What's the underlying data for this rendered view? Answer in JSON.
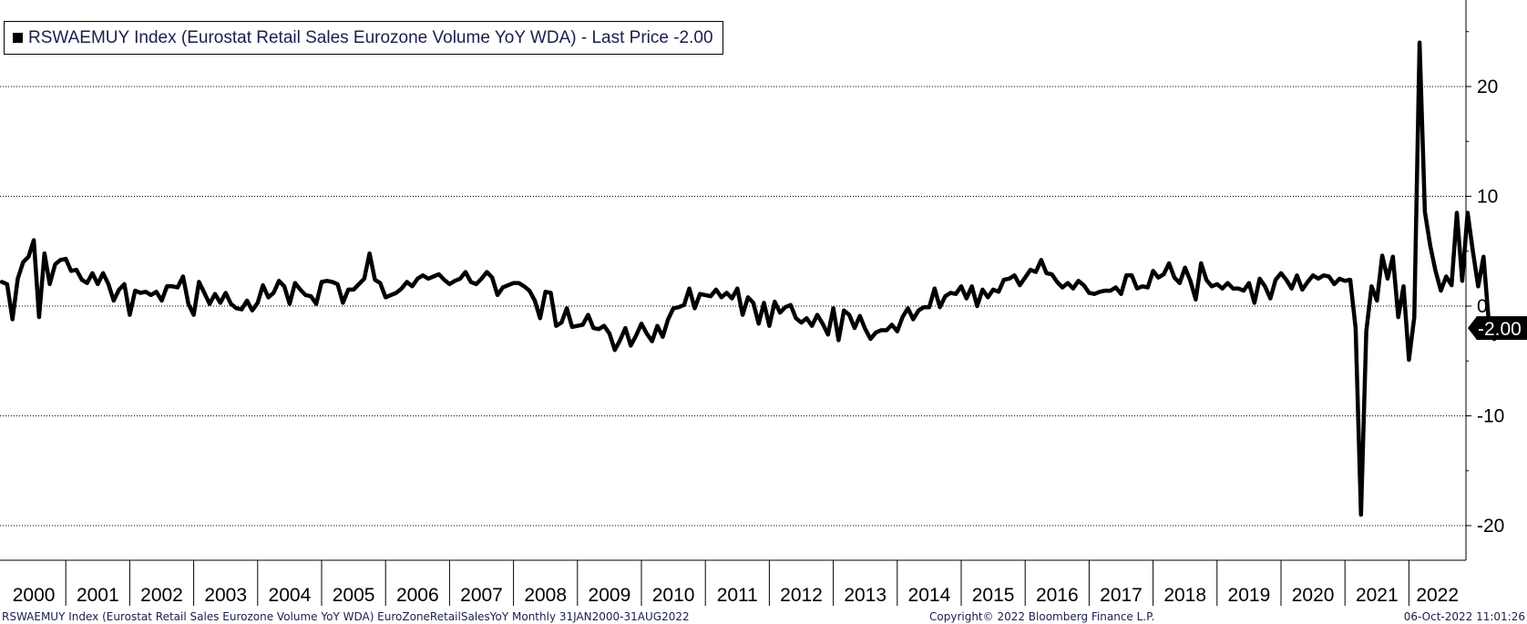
{
  "legend": {
    "text": "RSWAEMUY Index (Eurostat Retail Sales Eurozone Volume YoY WDA) - Last Price -2.00"
  },
  "footer": {
    "left": "RSWAEMUY Index (Eurostat Retail Sales Eurozone Volume YoY WDA) EuroZoneRetailSalesYoY  Monthly 31JAN2000-31AUG2022",
    "middle": "Copyright© 2022 Bloomberg Finance L.P.",
    "right": "06-Oct-2022 11:01:26"
  },
  "chart_data": {
    "type": "line",
    "title": "",
    "xlabel": "",
    "ylabel": "",
    "ylim": [
      -23,
      28
    ],
    "yticks": [
      20,
      10,
      0,
      -10,
      -20
    ],
    "ytick_labels": [
      "20",
      "10",
      "0",
      "-10",
      "-20"
    ],
    "y_axis_side": "right",
    "grid": "horizontal dotted",
    "x_start": "2000-01",
    "x_end": "2022-08",
    "frequency": "monthly",
    "years": [
      "2000",
      "2001",
      "2002",
      "2003",
      "2004",
      "2005",
      "2006",
      "2007",
      "2008",
      "2009",
      "2010",
      "2011",
      "2012",
      "2013",
      "2014",
      "2015",
      "2016",
      "2017",
      "2018",
      "2019",
      "2020",
      "2021",
      "2022"
    ],
    "last_value_label": "-2.00",
    "series": [
      {
        "name": "RSWAEMUY Index",
        "color": "#000000",
        "values": [
          2.2,
          2.0,
          -1.2,
          2.5,
          4.0,
          4.5,
          6.0,
          -1.0,
          4.8,
          2.0,
          3.8,
          4.2,
          4.3,
          3.2,
          3.3,
          2.4,
          2.1,
          3.0,
          2.0,
          3.0,
          2.0,
          0.5,
          1.5,
          2.0,
          -0.8,
          1.4,
          1.2,
          1.3,
          1.0,
          1.3,
          0.5,
          1.8,
          1.8,
          1.7,
          2.7,
          0.2,
          -0.8,
          2.2,
          1.2,
          0.2,
          1.1,
          0.3,
          1.2,
          0.2,
          -0.2,
          -0.3,
          0.5,
          -0.4,
          0.3,
          1.9,
          0.8,
          1.2,
          2.3,
          1.8,
          0.2,
          2.1,
          1.5,
          1.0,
          0.9,
          0.2,
          2.2,
          2.3,
          2.2,
          2.0,
          0.3,
          1.5,
          1.5,
          2.0,
          2.5,
          4.8,
          2.4,
          2.1,
          0.8,
          1.0,
          1.2,
          1.6,
          2.2,
          1.8,
          2.5,
          2.8,
          2.5,
          2.7,
          2.9,
          2.4,
          2.0,
          2.3,
          2.5,
          3.1,
          2.2,
          2.0,
          2.5,
          3.1,
          2.6,
          1.0,
          1.7,
          1.9,
          2.1,
          2.1,
          1.8,
          1.4,
          0.5,
          -1.1,
          1.3,
          1.2,
          -1.8,
          -1.5,
          -0.2,
          -1.9,
          -1.8,
          -1.7,
          -0.8,
          -2.0,
          -2.1,
          -1.8,
          -2.5,
          -4.0,
          -3.1,
          -2.0,
          -3.6,
          -2.7,
          -1.6,
          -2.5,
          -3.2,
          -1.8,
          -2.8,
          -1.2,
          -0.2,
          -0.1,
          0.1,
          1.6,
          -0.2,
          1.1,
          1.0,
          0.9,
          1.5,
          0.8,
          1.2,
          0.7,
          1.6,
          -0.8,
          0.8,
          0.3,
          -1.6,
          0.3,
          -1.8,
          0.4,
          -0.6,
          -0.1,
          0.1,
          -1.1,
          -1.5,
          -1.1,
          -1.8,
          -0.8,
          -1.6,
          -2.6,
          -0.2,
          -3.1,
          -0.4,
          -0.8,
          -2.0,
          -0.9,
          -2.1,
          -3.0,
          -2.4,
          -2.2,
          -2.2,
          -1.7,
          -2.3,
          -1.0,
          -0.2,
          -1.2,
          -0.4,
          -0.1,
          -0.1,
          1.6,
          -0.1,
          0.9,
          1.2,
          1.1,
          1.8,
          0.7,
          1.8,
          0.0,
          1.5,
          0.8,
          1.5,
          1.3,
          2.4,
          2.5,
          2.8,
          1.9,
          2.6,
          3.3,
          3.1,
          4.2,
          3.0,
          2.9,
          2.2,
          1.7,
          2.1,
          1.6,
          2.3,
          1.9,
          1.2,
          1.1,
          1.3,
          1.4,
          1.4,
          1.7,
          1.1,
          2.8,
          2.8,
          1.6,
          1.8,
          1.7,
          3.2,
          2.6,
          2.9,
          3.9,
          2.6,
          2.1,
          3.5,
          2.3,
          0.6,
          3.9,
          2.4,
          1.8,
          2.0,
          1.6,
          2.1,
          1.6,
          1.6,
          1.4,
          2.1,
          0.3,
          2.5,
          1.8,
          0.7,
          2.4,
          3.0,
          2.4,
          1.6,
          2.8,
          1.5,
          2.2,
          2.8,
          2.5,
          2.8,
          2.7,
          2.0,
          2.5,
          2.3,
          2.4,
          -2.0,
          -19.0,
          -2.3,
          1.8,
          0.5,
          4.6,
          2.5,
          4.5,
          -1.0,
          1.8,
          -4.9,
          -1.0,
          24.0,
          8.6,
          5.5,
          3.2,
          1.4,
          2.7,
          1.9,
          8.5,
          2.3,
          8.5,
          5.0,
          1.8,
          4.5,
          -1.5,
          -3.0,
          -1.3,
          -2.0
        ]
      }
    ]
  }
}
